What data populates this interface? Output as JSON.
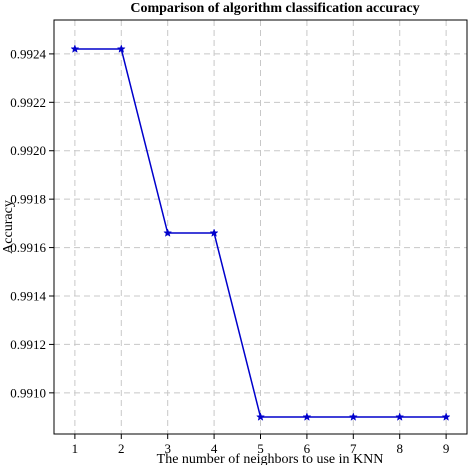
{
  "chart_data": {
    "type": "line",
    "title": "Comparison of algorithm classification accuracy",
    "xlabel": "The number of neighbors to use in KNN",
    "ylabel": "Accuracy",
    "x": [
      1,
      2,
      3,
      4,
      5,
      6,
      7,
      8,
      9
    ],
    "series": [
      {
        "values": [
          0.99242,
          0.99242,
          0.99166,
          0.99166,
          0.9909,
          0.9909,
          0.9909,
          0.9909,
          0.9909
        ],
        "color": "#0000cc",
        "marker": "star"
      }
    ],
    "xticks": [
      "1",
      "2",
      "3",
      "4",
      "5",
      "6",
      "7",
      "8",
      "9"
    ],
    "yticks": [
      "0.9910",
      "0.9912",
      "0.9914",
      "0.9916",
      "0.9918",
      "0.9920",
      "0.9922",
      "0.9924"
    ],
    "xlim": [
      0.55,
      9.45
    ],
    "ylim": [
      0.99083,
      0.99254
    ],
    "grid": true,
    "legend": "none"
  }
}
